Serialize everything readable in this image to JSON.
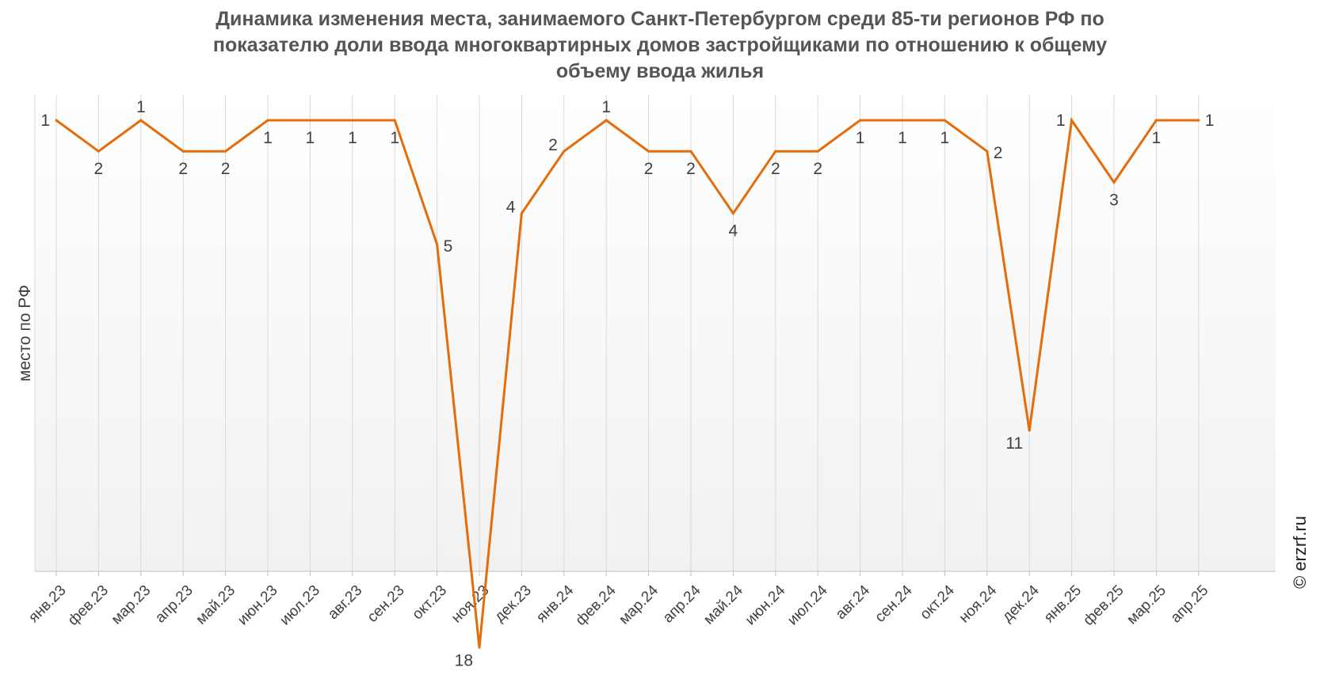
{
  "title_lines": [
    "Динамика изменения места, занимаемого Санкт-Петербургом среди 85-ти регионов РФ по",
    "показателю доли ввода многоквартирных домов застройщиками по отношению к общему",
    "объему ввода жилья"
  ],
  "watermark": "© erzrf.ru",
  "colors": {
    "line": "#E46C0A",
    "grid": "#D9D9D9",
    "text": "#404040",
    "title": "#555555"
  },
  "chart_data": {
    "type": "line",
    "title": "Динамика изменения места, занимаемого Санкт-Петербургом среди 85-ти регионов РФ по показателю доли ввода многоквартирных домов застройщиками по отношению к общему объему ввода жилья",
    "ylabel": "место по РФ",
    "xlabel": "",
    "y_inverted": true,
    "ylim": [
      1,
      19.7
    ],
    "grid": "vertical",
    "categories": [
      "янв.23",
      "фев.23",
      "мар.23",
      "апр.23",
      "май.23",
      "июн.23",
      "июл.23",
      "авг.23",
      "сен.23",
      "окт.23",
      "ноя.23",
      "дек.23",
      "янв.24",
      "фев.24",
      "мар.24",
      "апр.24",
      "май.24",
      "июн.24",
      "июл.24",
      "авг.24",
      "сен.24",
      "окт.24",
      "ноя.24",
      "дек.24",
      "янв.25",
      "фев.25",
      "мар.25",
      "апр.25"
    ],
    "series": [
      {
        "values": [
          1,
          2,
          1,
          2,
          2,
          1,
          1,
          1,
          1,
          5,
          18,
          4,
          2,
          1,
          2,
          2,
          4,
          2,
          2,
          1,
          1,
          1,
          2,
          11,
          1,
          3,
          1,
          1
        ]
      }
    ]
  }
}
